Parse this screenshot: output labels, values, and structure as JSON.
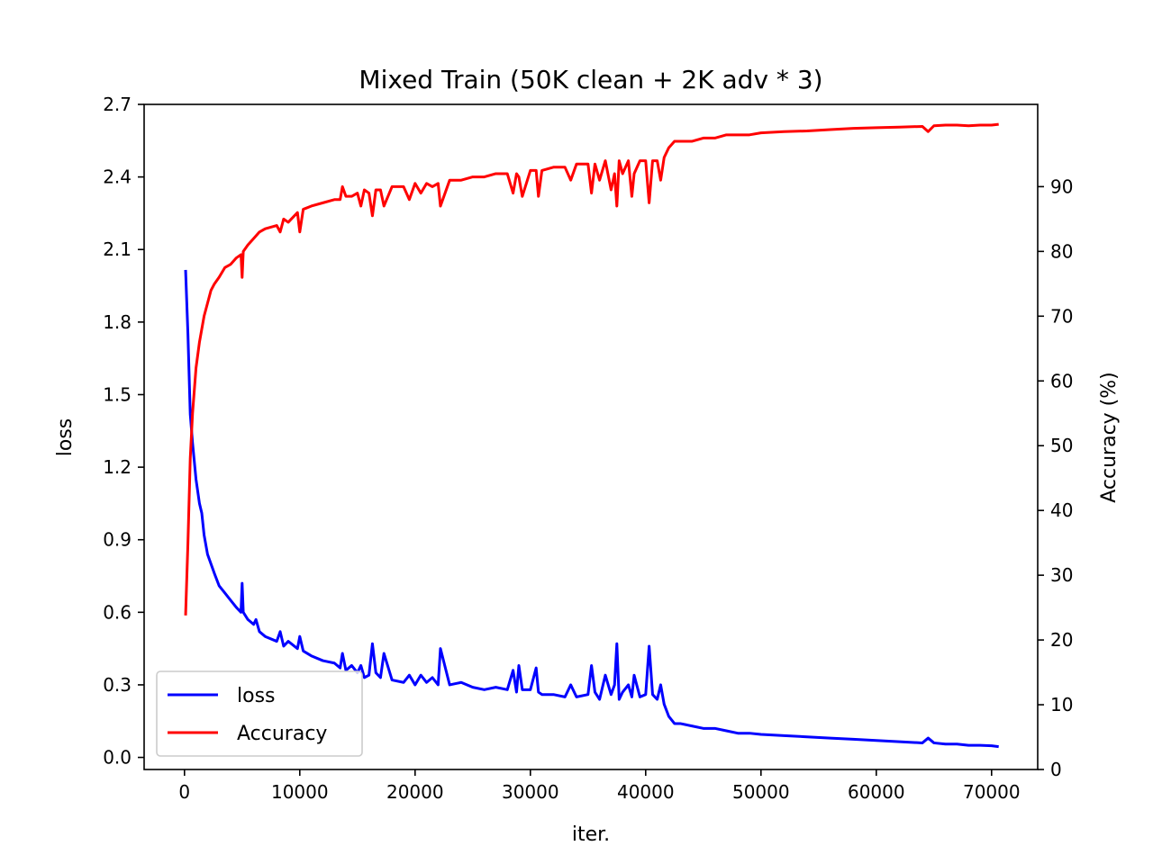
{
  "chart_data": {
    "type": "line",
    "title": "Mixed Train (50K clean + 2K adv * 3)",
    "xlabel": "iter.",
    "ylabel_left": "loss",
    "ylabel_right": "Accuracy (%)",
    "xlim": [
      -3500,
      74000
    ],
    "ylim_left": [
      -0.05,
      2.7
    ],
    "ylim_right": [
      0,
      102.7
    ],
    "x_ticks": [
      0,
      10000,
      20000,
      30000,
      40000,
      50000,
      60000,
      70000
    ],
    "x_tick_labels": [
      "0",
      "10000",
      "20000",
      "30000",
      "40000",
      "50000",
      "60000",
      "70000"
    ],
    "y_left_ticks": [
      0.0,
      0.3,
      0.6,
      0.9,
      1.2,
      1.5,
      1.8,
      2.1,
      2.4,
      2.7
    ],
    "y_left_tick_labels": [
      "0.0",
      "0.3",
      "0.6",
      "0.9",
      "1.2",
      "1.5",
      "1.8",
      "2.1",
      "2.4",
      "2.7"
    ],
    "y_right_ticks": [
      0,
      10,
      20,
      30,
      40,
      50,
      60,
      70,
      80,
      90
    ],
    "y_right_tick_labels": [
      "0",
      "10",
      "20",
      "30",
      "40",
      "50",
      "60",
      "70",
      "80",
      "90"
    ],
    "legend": {
      "position": "lower-left",
      "entries": [
        "loss",
        "Accuracy"
      ]
    },
    "series": [
      {
        "name": "loss",
        "axis": "left",
        "color": "#0000ff",
        "x": [
          100,
          300,
          500,
          700,
          1000,
          1300,
          1500,
          1700,
          2000,
          2300,
          2600,
          3000,
          3500,
          4000,
          4500,
          4900,
          5000,
          5100,
          5500,
          6000,
          6200,
          6500,
          7000,
          8000,
          8300,
          8600,
          9000,
          9800,
          10000,
          10300,
          11000,
          12000,
          13000,
          13500,
          13700,
          14000,
          14500,
          15000,
          15300,
          15600,
          16000,
          16300,
          16600,
          17000,
          17300,
          18000,
          19000,
          19500,
          20000,
          20500,
          21000,
          21500,
          22000,
          22200,
          23000,
          24000,
          25000,
          26000,
          27000,
          28000,
          28500,
          28800,
          29000,
          29300,
          30000,
          30500,
          30700,
          31000,
          32000,
          33000,
          33500,
          34000,
          35000,
          35300,
          35600,
          36000,
          36500,
          37000,
          37300,
          37500,
          37700,
          38000,
          38500,
          38800,
          39000,
          39500,
          40000,
          40300,
          40600,
          41000,
          41300,
          41600,
          42000,
          42500,
          43000,
          44000,
          45000,
          46000,
          47000,
          48000,
          49000,
          50000,
          52000,
          54000,
          56000,
          58000,
          60000,
          62000,
          64000,
          64500,
          65000,
          66000,
          67000,
          68000,
          69000,
          70000,
          70500
        ],
        "values": [
          2.01,
          1.75,
          1.42,
          1.3,
          1.15,
          1.05,
          1.01,
          0.92,
          0.84,
          0.8,
          0.76,
          0.71,
          0.68,
          0.65,
          0.62,
          0.6,
          0.72,
          0.6,
          0.57,
          0.55,
          0.57,
          0.52,
          0.5,
          0.48,
          0.52,
          0.46,
          0.48,
          0.45,
          0.5,
          0.44,
          0.42,
          0.4,
          0.39,
          0.37,
          0.43,
          0.36,
          0.38,
          0.35,
          0.38,
          0.33,
          0.34,
          0.47,
          0.35,
          0.33,
          0.43,
          0.32,
          0.31,
          0.34,
          0.3,
          0.34,
          0.31,
          0.33,
          0.3,
          0.45,
          0.3,
          0.31,
          0.29,
          0.28,
          0.29,
          0.28,
          0.36,
          0.27,
          0.38,
          0.28,
          0.28,
          0.37,
          0.27,
          0.26,
          0.26,
          0.25,
          0.3,
          0.25,
          0.26,
          0.38,
          0.27,
          0.24,
          0.34,
          0.26,
          0.3,
          0.47,
          0.24,
          0.27,
          0.3,
          0.25,
          0.34,
          0.25,
          0.26,
          0.46,
          0.26,
          0.24,
          0.3,
          0.22,
          0.17,
          0.14,
          0.14,
          0.13,
          0.12,
          0.12,
          0.11,
          0.1,
          0.1,
          0.095,
          0.09,
          0.085,
          0.08,
          0.075,
          0.07,
          0.065,
          0.06,
          0.08,
          0.06,
          0.055,
          0.055,
          0.05,
          0.05,
          0.048,
          0.045
        ]
      },
      {
        "name": "Accuracy",
        "axis": "right",
        "color": "#ff0000",
        "x": [
          100,
          300,
          500,
          700,
          1000,
          1300,
          1500,
          1700,
          2000,
          2300,
          2600,
          3000,
          3500,
          4000,
          4500,
          4900,
          5000,
          5100,
          5500,
          6000,
          6500,
          7000,
          8000,
          8300,
          8600,
          9000,
          9800,
          10000,
          10300,
          11000,
          12000,
          13000,
          13500,
          13700,
          14000,
          14500,
          15000,
          15300,
          15600,
          16000,
          16300,
          16600,
          17000,
          17300,
          18000,
          19000,
          19500,
          20000,
          20500,
          21000,
          21500,
          22000,
          22200,
          23000,
          24000,
          25000,
          26000,
          27000,
          28000,
          28500,
          28800,
          29000,
          29300,
          30000,
          30500,
          30700,
          31000,
          32000,
          33000,
          33500,
          34000,
          35000,
          35300,
          35600,
          36000,
          36500,
          37000,
          37300,
          37500,
          37700,
          38000,
          38500,
          38800,
          39000,
          39500,
          40000,
          40300,
          40600,
          41000,
          41300,
          41600,
          42000,
          42500,
          43000,
          44000,
          45000,
          46000,
          47000,
          48000,
          49000,
          50000,
          52000,
          54000,
          56000,
          58000,
          60000,
          62000,
          64000,
          64500,
          65000,
          66000,
          67000,
          68000,
          69000,
          70000,
          70500
        ],
        "values": [
          24,
          35,
          48,
          55,
          62,
          66,
          68,
          70,
          72,
          74,
          75,
          76,
          77.5,
          78,
          79,
          79.5,
          76,
          80,
          81,
          82,
          83,
          83.5,
          84,
          83,
          85,
          84.5,
          86,
          83,
          86.5,
          87,
          87.5,
          88,
          88,
          90,
          88.5,
          88.5,
          89,
          87,
          89.5,
          89,
          85.5,
          89.5,
          89.5,
          87,
          90,
          90,
          88,
          90.5,
          89,
          90.5,
          90,
          90.5,
          87,
          91,
          91,
          91.5,
          91.5,
          92,
          92,
          89,
          92,
          91.5,
          88.5,
          92.5,
          92.5,
          88.5,
          92.5,
          93,
          93,
          91,
          93.5,
          93.5,
          89,
          93.5,
          91,
          94,
          89.5,
          92,
          87,
          94,
          92,
          94,
          88.5,
          92,
          94,
          94,
          87.5,
          94,
          94,
          91,
          94.5,
          96,
          97,
          97,
          97,
          97.5,
          97.5,
          98,
          98,
          98,
          98.3,
          98.5,
          98.6,
          98.8,
          99,
          99.1,
          99.2,
          99.3,
          98.5,
          99.4,
          99.5,
          99.5,
          99.4,
          99.5,
          99.5,
          99.6
        ]
      }
    ]
  }
}
